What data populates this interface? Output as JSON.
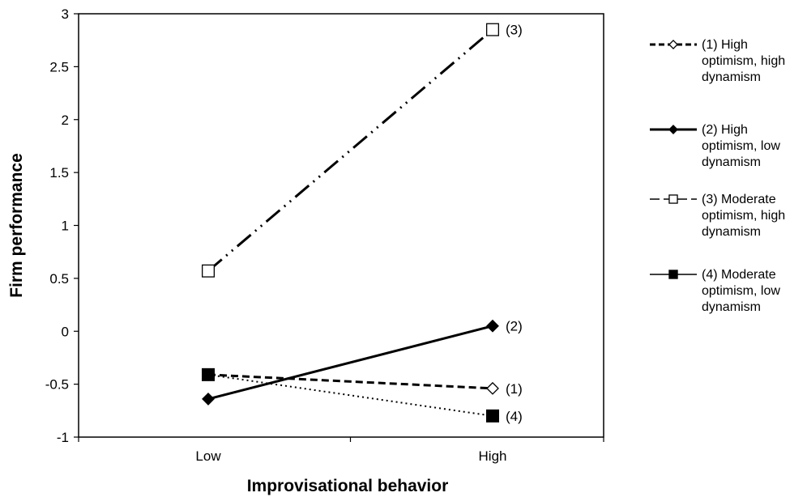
{
  "chart_data": {
    "type": "line",
    "categories": [
      "Low",
      "High"
    ],
    "xlabel": "Improvisational behavior",
    "ylabel": "Firm performance",
    "ylim": [
      -1,
      3
    ],
    "yticks": [
      "-1",
      "-0.5",
      "0",
      "0.5",
      "1",
      "1.5",
      "2",
      "2.5",
      "3"
    ],
    "grid": false,
    "legend_position": "right",
    "series": [
      {
        "name": "(1) High optimism, high dynamism",
        "legend_lines": [
          "(1) High",
          "optimism, high",
          "dynamism"
        ],
        "point_label": "(1)",
        "values": [
          -0.41,
          -0.54
        ],
        "line_style": "dashed",
        "marker": "open-diamond"
      },
      {
        "name": "(2) High optimism, low dynamism",
        "legend_lines": [
          "(2) High",
          "optimism, low",
          "dynamism"
        ],
        "point_label": "(2)",
        "values": [
          -0.64,
          0.05
        ],
        "line_style": "solid",
        "marker": "filled-diamond"
      },
      {
        "name": "(3) Moderate optimism, high dynamism",
        "legend_lines": [
          "(3) Moderate",
          "optimism, high",
          "dynamism"
        ],
        "point_label": "(3)",
        "values": [
          0.57,
          2.85
        ],
        "line_style": "dash-dot-dot",
        "marker": "open-square"
      },
      {
        "name": "(4) Moderate optimism, low dynamism",
        "legend_lines": [
          "(4) Moderate",
          "optimism, low",
          "dynamism"
        ],
        "point_label": "(4)",
        "values": [
          -0.41,
          -0.8
        ],
        "line_style": "dotted",
        "marker": "filled-square"
      }
    ]
  }
}
